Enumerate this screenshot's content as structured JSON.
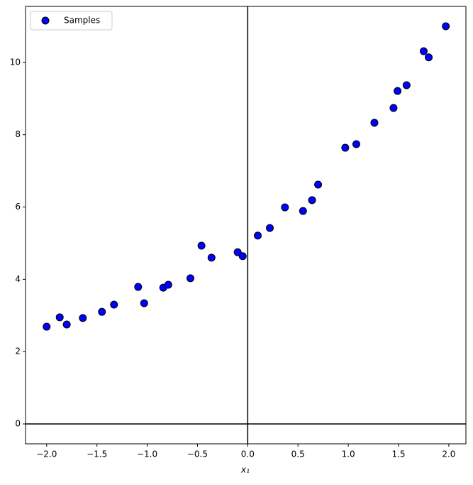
{
  "chart_data": {
    "type": "scatter",
    "xlabel": "x₁",
    "series": [
      {
        "name": "Samples",
        "color": "#0000ff",
        "edgecolor": "#000000",
        "x": [
          -2.0,
          -1.87,
          -1.8,
          -1.64,
          -1.45,
          -1.33,
          -1.09,
          -1.03,
          -0.84,
          -0.79,
          -0.57,
          -0.46,
          -0.36,
          -0.1,
          -0.05,
          0.1,
          0.22,
          0.37,
          0.55,
          0.64,
          0.7,
          0.97,
          1.08,
          1.26,
          1.45,
          1.49,
          1.58,
          1.75,
          1.8,
          1.97
        ],
        "values": [
          2.69,
          2.95,
          2.75,
          2.93,
          3.1,
          3.3,
          3.79,
          3.34,
          3.77,
          3.85,
          4.03,
          4.93,
          4.6,
          4.75,
          4.64,
          5.21,
          5.42,
          5.99,
          5.89,
          6.19,
          6.62,
          7.64,
          7.74,
          8.33,
          8.74,
          9.21,
          9.37,
          10.31,
          10.14,
          11.0
        ]
      }
    ],
    "xlim": [
      -2.21,
      2.17
    ],
    "ylim": [
      -0.55,
      11.55
    ],
    "xticks": [
      {
        "value": -2.0,
        "label": "−2.0"
      },
      {
        "value": -1.5,
        "label": "−1.5"
      },
      {
        "value": -1.0,
        "label": "−1.0"
      },
      {
        "value": -0.5,
        "label": "−0.5"
      },
      {
        "value": 0,
        "label": "0.0"
      },
      {
        "value": 0.5,
        "label": "0.5"
      },
      {
        "value": 1.0,
        "label": "1.0"
      },
      {
        "value": 1.5,
        "label": "1.5"
      },
      {
        "value": 2.0,
        "label": "2.0"
      }
    ],
    "yticks": [
      0,
      2,
      4,
      6,
      8,
      10
    ],
    "hlines": [
      0
    ],
    "vlines": [
      0
    ],
    "line_color": "#000000",
    "grid": false,
    "legend": "upper left"
  }
}
